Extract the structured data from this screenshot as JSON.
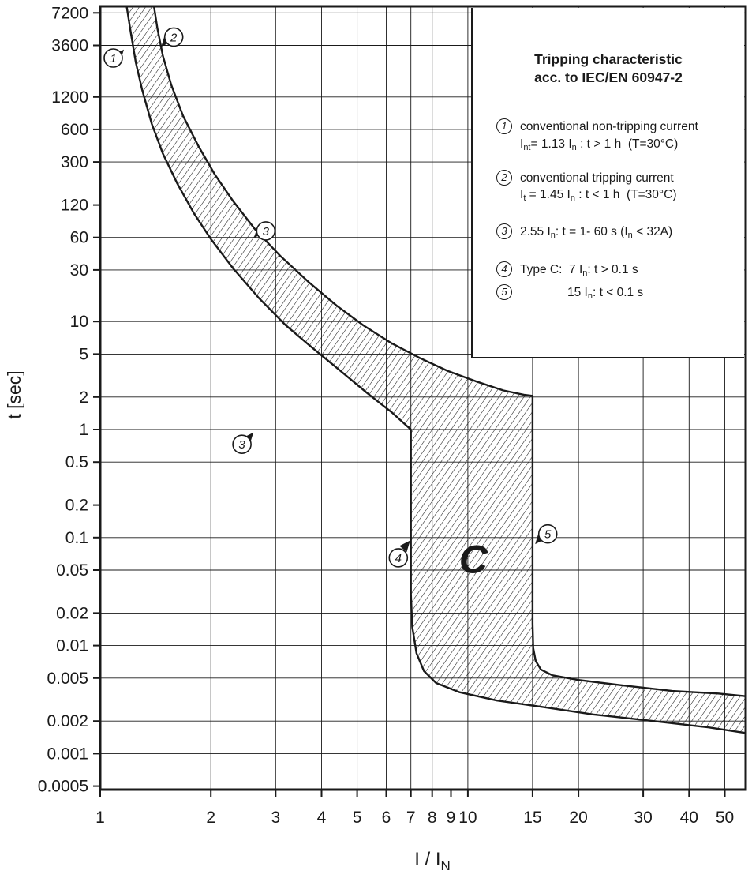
{
  "page": {
    "background": "#ffffff",
    "ink": "#1a1a1a"
  },
  "chart_data": {
    "type": "area",
    "title": "Tripping characteristic",
    "subtitle": "acc. to IEC/EN 60947-2",
    "xlabel": "I / I_N",
    "ylabel": "t [sec]",
    "x_scale": "log",
    "y_scale": "log",
    "grid": true,
    "xlim": [
      1,
      57
    ],
    "ylim": [
      0.000464,
      8280
    ],
    "x_ticks": [
      "1",
      "2",
      "3",
      "4",
      "5",
      "6",
      "7",
      "8",
      "9",
      "10",
      "15",
      "20",
      "30",
      "40",
      "50"
    ],
    "y_ticks": [
      "7200",
      "3600",
      "1200",
      "600",
      "300",
      "120",
      "60",
      "30",
      "10",
      "5",
      "2",
      "1",
      "0.5",
      "0.2",
      "0.1",
      "0.05",
      "0.02",
      "0.01",
      "0.005",
      "0.002",
      "0.001",
      "0.0005"
    ],
    "region_label": {
      "text": "C",
      "at": [
        10.35,
        0.047
      ]
    },
    "band": {
      "name": "type-C-tripping-band",
      "lower": [
        [
          1.18,
          8280
        ],
        [
          1.21,
          4800
        ],
        [
          1.25,
          2500
        ],
        [
          1.3,
          1400
        ],
        [
          1.38,
          680
        ],
        [
          1.48,
          360
        ],
        [
          1.62,
          190
        ],
        [
          1.8,
          100
        ],
        [
          2.0,
          58
        ],
        [
          2.3,
          31
        ],
        [
          2.7,
          16.5
        ],
        [
          3.2,
          9.2
        ],
        [
          3.8,
          5.6
        ],
        [
          4.5,
          3.5
        ],
        [
          5.3,
          2.2
        ],
        [
          6.2,
          1.45
        ],
        [
          7.0,
          1.0
        ],
        [
          7.0,
          0.03
        ],
        [
          7.06,
          0.015
        ],
        [
          7.25,
          0.0085
        ],
        [
          7.6,
          0.0058
        ],
        [
          8.2,
          0.0045
        ],
        [
          9.5,
          0.0037
        ],
        [
          12,
          0.0031
        ],
        [
          16,
          0.0027
        ],
        [
          22,
          0.0023
        ],
        [
          32,
          0.002
        ],
        [
          45,
          0.00175
        ],
        [
          57,
          0.00155
        ]
      ],
      "upper": [
        [
          1.4,
          8280
        ],
        [
          1.43,
          5200
        ],
        [
          1.48,
          2900
        ],
        [
          1.56,
          1550
        ],
        [
          1.68,
          800
        ],
        [
          1.85,
          420
        ],
        [
          2.05,
          230
        ],
        [
          2.3,
          130
        ],
        [
          2.65,
          70
        ],
        [
          3.1,
          40
        ],
        [
          3.7,
          23
        ],
        [
          4.4,
          14
        ],
        [
          5.2,
          9.2
        ],
        [
          6.2,
          6.3
        ],
        [
          7.4,
          4.6
        ],
        [
          8.8,
          3.5
        ],
        [
          10.5,
          2.8
        ],
        [
          12.5,
          2.3
        ],
        [
          14.2,
          2.1
        ],
        [
          15,
          2.05
        ],
        [
          15,
          0.016
        ],
        [
          15.06,
          0.0095
        ],
        [
          15.3,
          0.0072
        ],
        [
          15.8,
          0.006
        ],
        [
          17,
          0.0053
        ],
        [
          20,
          0.0048
        ],
        [
          26,
          0.0043
        ],
        [
          36,
          0.0038
        ],
        [
          48,
          0.0036
        ],
        [
          57,
          0.0034
        ]
      ]
    },
    "annotations": [
      {
        "num": "1",
        "at": [
          1.085,
          2750
        ],
        "pointer": [
          1.16,
          3300
        ],
        "dir": "ne"
      },
      {
        "num": "2",
        "at": [
          1.585,
          4300
        ],
        "pointer": [
          1.465,
          3500
        ],
        "dir": "sw"
      },
      {
        "num": "3",
        "at": [
          2.82,
          69
        ],
        "pointer": [
          2.62,
          59.5
        ],
        "dir": "sw"
      },
      {
        "num": "3",
        "at": [
          2.43,
          0.73
        ],
        "pointer": [
          2.61,
          0.94
        ],
        "dir": "ne"
      },
      {
        "num": "4",
        "at": [
          6.47,
          0.065
        ],
        "pointer": [
          6.97,
          0.094
        ],
        "dir": "ne"
      },
      {
        "num": "5",
        "at": [
          16.5,
          0.108
        ],
        "pointer": [
          15.25,
          0.087
        ],
        "dir": "sw"
      }
    ]
  },
  "legend": {
    "items": [
      {
        "num": "1",
        "lines": [
          [
            {
              "t": "conventional non-tripping current"
            }
          ],
          [
            {
              "t": "I"
            },
            {
              "s": "nt"
            },
            {
              "t": "= 1.13 I"
            },
            {
              "s": "n"
            },
            {
              "t": " : t > 1 h  (T=30°C)"
            }
          ]
        ]
      },
      {
        "num": "2",
        "lines": [
          [
            {
              "t": "conventional tripping current"
            }
          ],
          [
            {
              "t": "I"
            },
            {
              "s": "t"
            },
            {
              "t": " = 1.45 I"
            },
            {
              "s": "n"
            },
            {
              "t": " : t < 1 h  (T=30°C)"
            }
          ]
        ]
      },
      {
        "num": "3",
        "lines": [
          [
            {
              "t": "2.55 I"
            },
            {
              "s": "n"
            },
            {
              "t": ": t = 1- 60 s (I"
            },
            {
              "s": "n"
            },
            {
              "t": " < 32A)"
            }
          ]
        ]
      },
      {
        "num": "4",
        "lines": [
          [
            {
              "t": "Type C:  7 I"
            },
            {
              "s": "n"
            },
            {
              "t": ": t > 0.1 s"
            }
          ]
        ]
      },
      {
        "num": "5",
        "lines": [
          [
            {
              "t": "15 I"
            },
            {
              "s": "n"
            },
            {
              "t": ": t < 0.1 s"
            }
          ]
        ]
      }
    ]
  }
}
